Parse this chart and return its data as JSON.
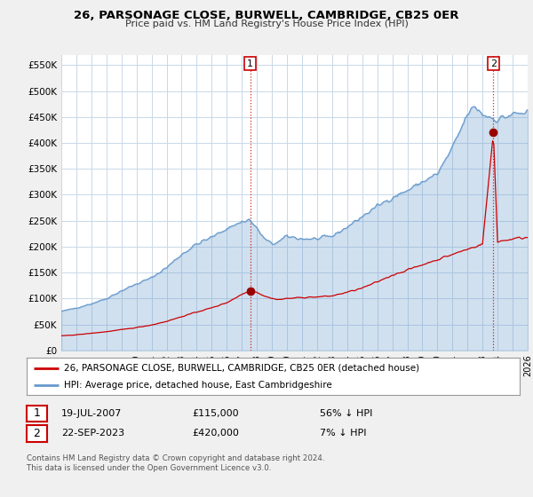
{
  "title": "26, PARSONAGE CLOSE, BURWELL, CAMBRIDGE, CB25 0ER",
  "subtitle": "Price paid vs. HM Land Registry's House Price Index (HPI)",
  "ylim": [
    0,
    570000
  ],
  "yticks": [
    0,
    50000,
    100000,
    150000,
    200000,
    250000,
    300000,
    350000,
    400000,
    450000,
    500000,
    550000
  ],
  "ytick_labels": [
    "£0",
    "£50K",
    "£100K",
    "£150K",
    "£200K",
    "£250K",
    "£300K",
    "£350K",
    "£400K",
    "£450K",
    "£500K",
    "£550K"
  ],
  "sale1_date": 2007.55,
  "sale1_price": 115000,
  "sale1_label": "1",
  "sale2_date": 2023.72,
  "sale2_price": 420000,
  "sale2_label": "2",
  "hpi_color": "#6699cc",
  "hpi_fill": "#ddeeff",
  "price_color": "#cc0000",
  "vline_color": "#cc0000",
  "dot_color": "#990000",
  "bg_color": "#f0f0f0",
  "plot_bg": "#ffffff",
  "grid_color": "#c8d8e8",
  "legend_label_price": "26, PARSONAGE CLOSE, BURWELL, CAMBRIDGE, CB25 0ER (detached house)",
  "legend_label_hpi": "HPI: Average price, detached house, East Cambridgeshire",
  "annotation1_date": "19-JUL-2007",
  "annotation1_price": "£115,000",
  "annotation1_hpi": "56% ↓ HPI",
  "annotation2_date": "22-SEP-2023",
  "annotation2_price": "£420,000",
  "annotation2_hpi": "7% ↓ HPI",
  "footer": "Contains HM Land Registry data © Crown copyright and database right 2024.\nThis data is licensed under the Open Government Licence v3.0.",
  "xmin": 1995,
  "xmax": 2026
}
